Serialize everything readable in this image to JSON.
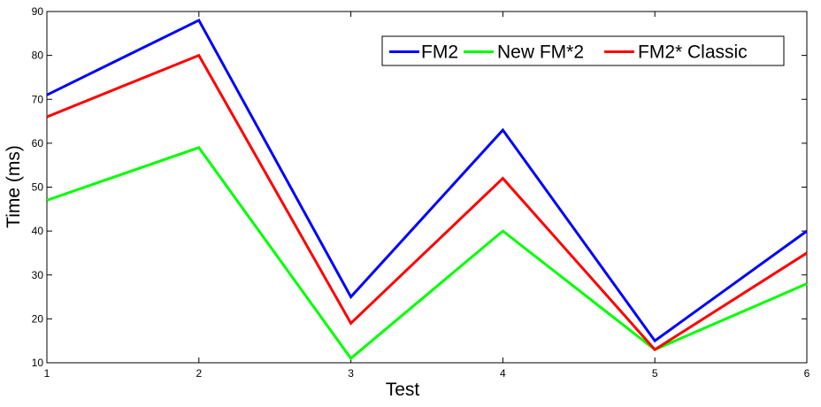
{
  "chart_data": {
    "type": "line",
    "xlabel": "Test",
    "ylabel": "Time (ms)",
    "xlim": [
      1,
      6
    ],
    "ylim": [
      10,
      90
    ],
    "xticks": [
      1,
      2,
      3,
      4,
      5,
      6
    ],
    "yticks": [
      10,
      20,
      30,
      40,
      50,
      60,
      70,
      80,
      90
    ],
    "grid": false,
    "legend_position": "top-right",
    "x": [
      1,
      2,
      3,
      4,
      5,
      6
    ],
    "series": [
      {
        "name": "FM2",
        "color": "#0000ff",
        "values": [
          71,
          88,
          25,
          63,
          15,
          40
        ]
      },
      {
        "name": "New FM*2",
        "color": "#00ff00",
        "values": [
          47,
          59,
          11,
          40,
          13,
          28
        ]
      },
      {
        "name": "FM2* Classic",
        "color": "#ff0000",
        "values": [
          66,
          80,
          19,
          52,
          13,
          35
        ]
      }
    ]
  }
}
